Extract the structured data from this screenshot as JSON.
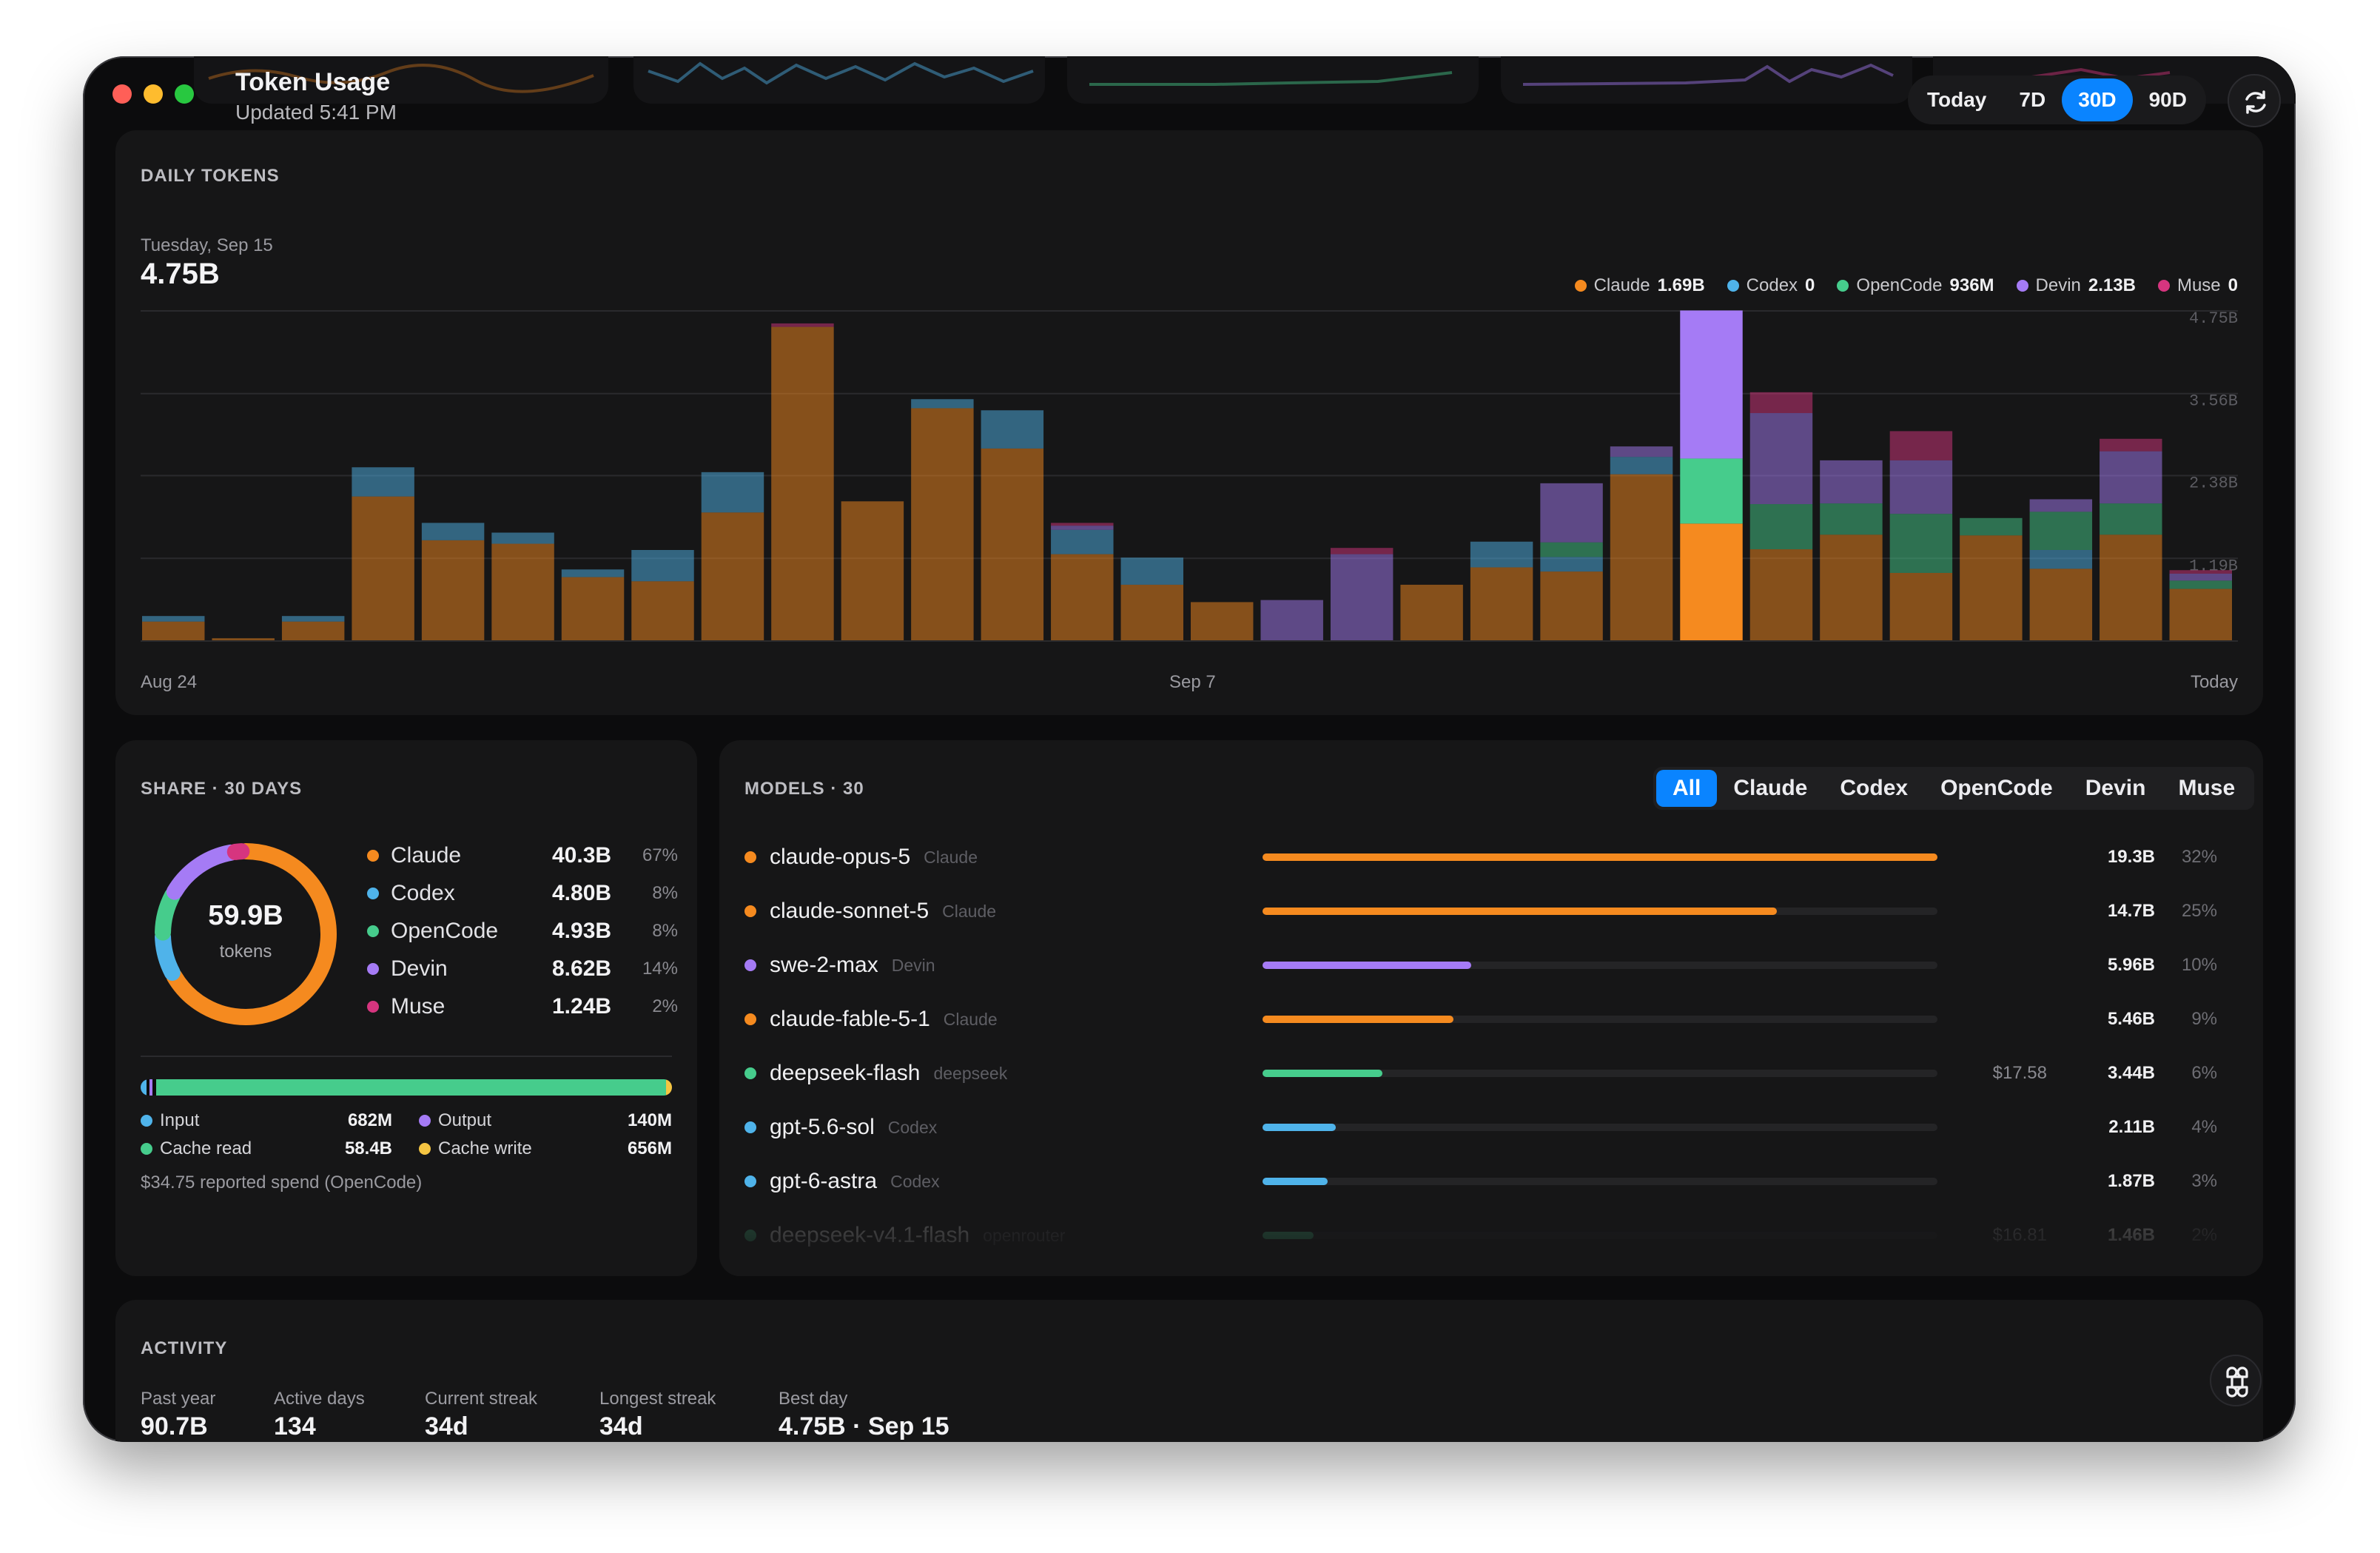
{
  "app": {
    "title": "Token Usage",
    "updated": "Updated 5:41 PM"
  },
  "range": {
    "options": [
      "Today",
      "7D",
      "30D",
      "90D"
    ],
    "selected": "30D"
  },
  "colors": {
    "claude": "#f58a1f",
    "codex": "#4fb3ea",
    "opencode": "#46cc8c",
    "devin": "#a57bf5",
    "muse": "#d6357f",
    "accent": "#0a84ff"
  },
  "daily": {
    "label": "DAILY TOKENS",
    "selected_day": "Tuesday, Sep 15",
    "selected_total": "4.75B",
    "legend": [
      {
        "name": "Claude",
        "value": "1.69B",
        "color": "#f58a1f"
      },
      {
        "name": "Codex",
        "value": "0",
        "color": "#4fb3ea"
      },
      {
        "name": "OpenCode",
        "value": "936M",
        "color": "#46cc8c"
      },
      {
        "name": "Devin",
        "value": "2.13B",
        "color": "#a57bf5"
      },
      {
        "name": "Muse",
        "value": "0",
        "color": "#d6357f"
      }
    ],
    "x_start": "Aug 24",
    "x_mid": "Sep 7",
    "x_end": "Today"
  },
  "chart_data": {
    "type": "bar",
    "stacked": true,
    "categories": [
      "Aug 24",
      "Aug 25",
      "Aug 26",
      "Aug 27",
      "Aug 28",
      "Aug 29",
      "Aug 30",
      "Aug 31",
      "Sep 1",
      "Sep 2",
      "Sep 3",
      "Sep 4",
      "Sep 5",
      "Sep 6",
      "Sep 7",
      "Sep 8",
      "Sep 9",
      "Sep 10",
      "Sep 11",
      "Sep 12",
      "Sep 13",
      "Sep 14",
      "Sep 15",
      "Sep 16",
      "Sep 17",
      "Sep 18",
      "Sep 19",
      "Sep 20",
      "Sep 21",
      "Sep 22"
    ],
    "series": [
      {
        "name": "Claude",
        "color": "#f58a1f",
        "values": [
          0.28,
          0.04,
          0.28,
          2.08,
          1.45,
          1.4,
          0.92,
          0.86,
          1.85,
          4.52,
          2.01,
          3.35,
          2.77,
          1.25,
          0.81,
          0.56,
          0,
          0,
          0.81,
          1.06,
          1.0,
          2.4,
          1.69,
          1.32,
          1.53,
          0.98,
          1.52,
          1.04,
          1.53,
          0.75
        ]
      },
      {
        "name": "Codex",
        "color": "#4fb3ea",
        "values": [
          0.08,
          0,
          0.08,
          0.42,
          0.25,
          0.16,
          0.11,
          0.45,
          0.58,
          0,
          0,
          0.13,
          0.55,
          0.35,
          0.39,
          0,
          0,
          0,
          0,
          0.37,
          0.21,
          0.25,
          0,
          0,
          0,
          0,
          0,
          0.27,
          0,
          0
        ]
      },
      {
        "name": "OpenCode",
        "color": "#46cc8c",
        "values": [
          0,
          0,
          0,
          0,
          0,
          0,
          0,
          0,
          0,
          0,
          0,
          0,
          0,
          0,
          0,
          0,
          0,
          0,
          0,
          0,
          0.21,
          0,
          0.936,
          0.65,
          0.45,
          0.85,
          0.25,
          0.55,
          0.45,
          0.12
        ]
      },
      {
        "name": "Devin",
        "color": "#a57bf5",
        "values": [
          0,
          0,
          0,
          0,
          0,
          0,
          0,
          0,
          0,
          0,
          0,
          0,
          0,
          0.06,
          0,
          0,
          0.59,
          1.25,
          0,
          0,
          0.85,
          0.15,
          2.13,
          1.31,
          0.62,
          0.77,
          0,
          0.18,
          0.75,
          0.1
        ]
      },
      {
        "name": "Muse",
        "color": "#d6357f",
        "values": [
          0,
          0,
          0,
          0,
          0,
          0,
          0,
          0,
          0,
          0.05,
          0,
          0,
          0,
          0.04,
          0,
          0,
          0,
          0.09,
          0,
          0,
          0,
          0,
          0,
          0.3,
          0,
          0.42,
          0,
          0,
          0.18,
          0.05
        ]
      }
    ],
    "highlight_index": 22,
    "y_ticks": [
      "1.19B",
      "2.38B",
      "3.56B",
      "4.75B"
    ],
    "ylim": [
      0,
      4.75
    ],
    "grid": true,
    "legend_position": "top-right",
    "ylabel": "",
    "xlabel": ""
  },
  "share": {
    "label": "SHARE · 30 DAYS",
    "total": "59.9B",
    "total_unit": "tokens",
    "items": [
      {
        "name": "Claude",
        "value": "40.3B",
        "pct": "67%",
        "color": "#f58a1f"
      },
      {
        "name": "Codex",
        "value": "4.80B",
        "pct": "8%",
        "color": "#4fb3ea"
      },
      {
        "name": "OpenCode",
        "value": "4.93B",
        "pct": "8%",
        "color": "#46cc8c"
      },
      {
        "name": "Devin",
        "value": "8.62B",
        "pct": "14%",
        "color": "#a57bf5"
      },
      {
        "name": "Muse",
        "value": "1.24B",
        "pct": "2%",
        "color": "#d6357f"
      }
    ],
    "token_types": [
      {
        "name": "Input",
        "value": "682M",
        "color": "#4fb3ea"
      },
      {
        "name": "Output",
        "value": "140M",
        "color": "#a57bf5"
      },
      {
        "name": "Cache read",
        "value": "58.4B",
        "color": "#46cc8c"
      },
      {
        "name": "Cache write",
        "value": "656M",
        "color": "#f5c542"
      }
    ],
    "spend_note": "$34.75 reported spend (OpenCode)"
  },
  "models": {
    "label": "MODELS · 30",
    "tabs": [
      "All",
      "Claude",
      "Codex",
      "OpenCode",
      "Devin",
      "Muse"
    ],
    "selected_tab": "All",
    "rows": [
      {
        "name": "claude-opus-5",
        "provider": "Claude",
        "cost": "",
        "value": "19.3B",
        "pct": "32%",
        "color": "#f58a1f",
        "share": 1.0
      },
      {
        "name": "claude-sonnet-5",
        "provider": "Claude",
        "cost": "",
        "value": "14.7B",
        "pct": "25%",
        "color": "#f58a1f",
        "share": 0.762
      },
      {
        "name": "swe-2-max",
        "provider": "Devin",
        "cost": "",
        "value": "5.96B",
        "pct": "10%",
        "color": "#a57bf5",
        "share": 0.309
      },
      {
        "name": "claude-fable-5-1",
        "provider": "Claude",
        "cost": "",
        "value": "5.46B",
        "pct": "9%",
        "color": "#f58a1f",
        "share": 0.283
      },
      {
        "name": "deepseek-flash",
        "provider": "deepseek",
        "cost": "$17.58",
        "value": "3.44B",
        "pct": "6%",
        "color": "#46cc8c",
        "share": 0.178
      },
      {
        "name": "gpt-5.6-sol",
        "provider": "Codex",
        "cost": "",
        "value": "2.11B",
        "pct": "4%",
        "color": "#4fb3ea",
        "share": 0.109
      },
      {
        "name": "gpt-6-astra",
        "provider": "Codex",
        "cost": "",
        "value": "1.87B",
        "pct": "3%",
        "color": "#4fb3ea",
        "share": 0.097
      },
      {
        "name": "deepseek-v4.1-flash",
        "provider": "openrouter",
        "cost": "$16.81",
        "value": "1.46B",
        "pct": "2%",
        "color": "#46cc8c",
        "share": 0.076
      }
    ]
  },
  "activity": {
    "label": "ACTIVITY",
    "stats": [
      {
        "label": "Past year",
        "value": "90.7B"
      },
      {
        "label": "Active days",
        "value": "134"
      },
      {
        "label": "Current streak",
        "value": "34d"
      },
      {
        "label": "Longest streak",
        "value": "34d"
      },
      {
        "label": "Best day",
        "value": "4.75B · Sep 15"
      }
    ]
  }
}
